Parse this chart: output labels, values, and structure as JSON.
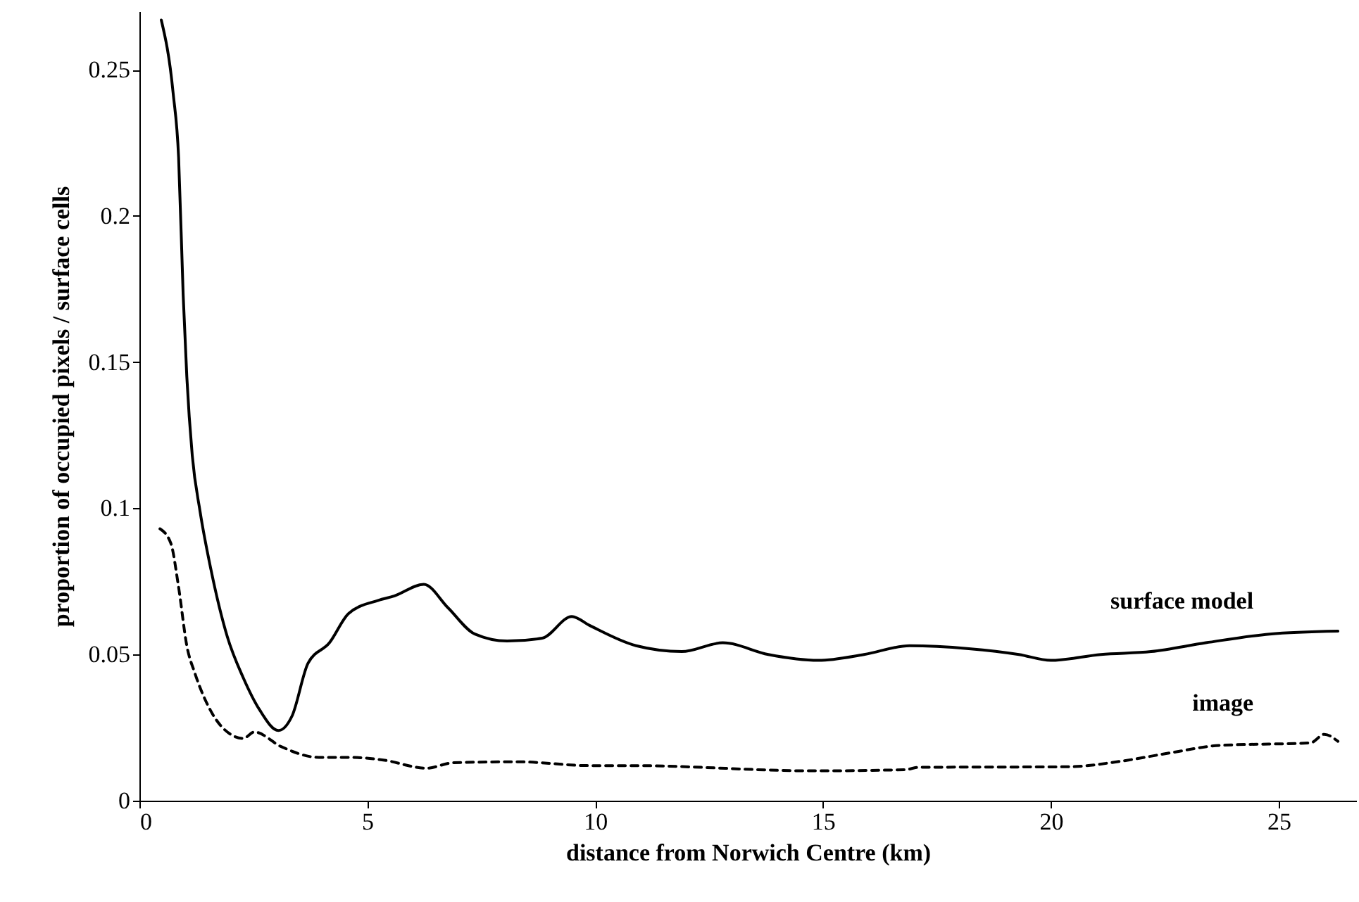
{
  "chart_data": {
    "type": "line",
    "xlabel": "distance from Norwich Centre (km)",
    "ylabel": "proportion of occupied pixels / surface cells",
    "xlim": [
      0,
      26.7
    ],
    "xticks": [
      0,
      5,
      10,
      15,
      20,
      25
    ],
    "ylim": [
      0,
      0.27
    ],
    "yticks": [
      0,
      0.05,
      0.1,
      0.15,
      0.2,
      0.25
    ],
    "grid": false,
    "series": [
      {
        "name": "surface model",
        "color": "#000000",
        "line_style": "solid",
        "x": [
          0.48,
          0.74,
          0.86,
          0.96,
          1.04,
          1.16,
          1.33,
          1.57,
          1.93,
          2.28,
          2.64,
          3.05,
          3.35,
          3.7,
          4.17,
          4.59,
          5.24,
          5.59,
          6.24,
          6.77,
          7.36,
          8.07,
          8.84,
          9.49,
          9.87,
          10.9,
          11.9,
          12.8,
          13.8,
          14.9,
          15.9,
          16.9,
          18.2,
          19.3,
          20.0,
          21.1,
          22.2,
          23.4,
          24.8,
          26.3
        ],
        "values": [
          0.267,
          0.242,
          0.22,
          0.173,
          0.145,
          0.118,
          0.099,
          0.079,
          0.056,
          0.042,
          0.031,
          0.024,
          0.029,
          0.047,
          0.054,
          0.064,
          0.0685,
          0.07,
          0.074,
          0.066,
          0.057,
          0.0546,
          0.0556,
          0.063,
          0.06,
          0.053,
          0.051,
          0.054,
          0.05,
          0.048,
          0.05,
          0.053,
          0.052,
          0.05,
          0.048,
          0.05,
          0.051,
          0.054,
          0.057,
          0.058
        ]
      },
      {
        "name": "image",
        "color": "#000000",
        "line_style": "dashed",
        "x": [
          0.45,
          0.69,
          0.86,
          1.04,
          1.22,
          1.57,
          1.99,
          2.28,
          2.52,
          3.11,
          3.94,
          4.65,
          5.35,
          6.3,
          6.89,
          8.31,
          9.87,
          10.8,
          14.8,
          16.8,
          17.1,
          20.4,
          21.5,
          22.6,
          23.7,
          25.7,
          26.0,
          26.3
        ],
        "values": [
          0.093,
          0.088,
          0.073,
          0.053,
          0.0435,
          0.0306,
          0.0228,
          0.0213,
          0.0235,
          0.0185,
          0.0148,
          0.0148,
          0.0139,
          0.0111,
          0.013,
          0.0133,
          0.012,
          0.012,
          0.0102,
          0.0106,
          0.0114,
          0.0116,
          0.0134,
          0.0163,
          0.0189,
          0.0198,
          0.0227,
          0.0203
        ]
      }
    ]
  }
}
